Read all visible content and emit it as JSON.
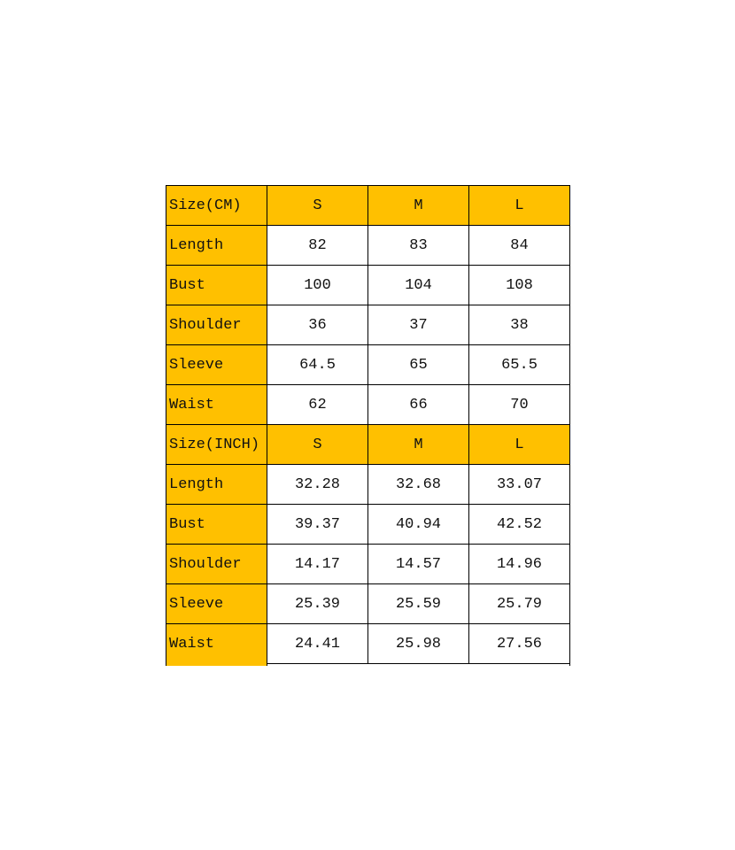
{
  "sections": [
    {
      "header": [
        "Size(CM)",
        "S",
        "M",
        "L"
      ],
      "rows": [
        [
          "Length",
          "82",
          "83",
          "84"
        ],
        [
          "Bust",
          "100",
          "104",
          "108"
        ],
        [
          "Shoulder",
          "36",
          "37",
          "38"
        ],
        [
          "Sleeve",
          "64.5",
          "65",
          "65.5"
        ],
        [
          "Waist",
          "62",
          "66",
          "70"
        ]
      ]
    },
    {
      "header": [
        "Size(INCH)",
        "S",
        "M",
        "L"
      ],
      "rows": [
        [
          "Length",
          "32.28",
          "32.68",
          "33.07"
        ],
        [
          "Bust",
          "39.37",
          "40.94",
          "42.52"
        ],
        [
          "Shoulder",
          "14.17",
          "14.57",
          "14.96"
        ],
        [
          "Sleeve",
          "25.39",
          "25.59",
          "25.79"
        ],
        [
          "Waist",
          "24.41",
          "25.98",
          "27.56"
        ]
      ]
    }
  ]
}
